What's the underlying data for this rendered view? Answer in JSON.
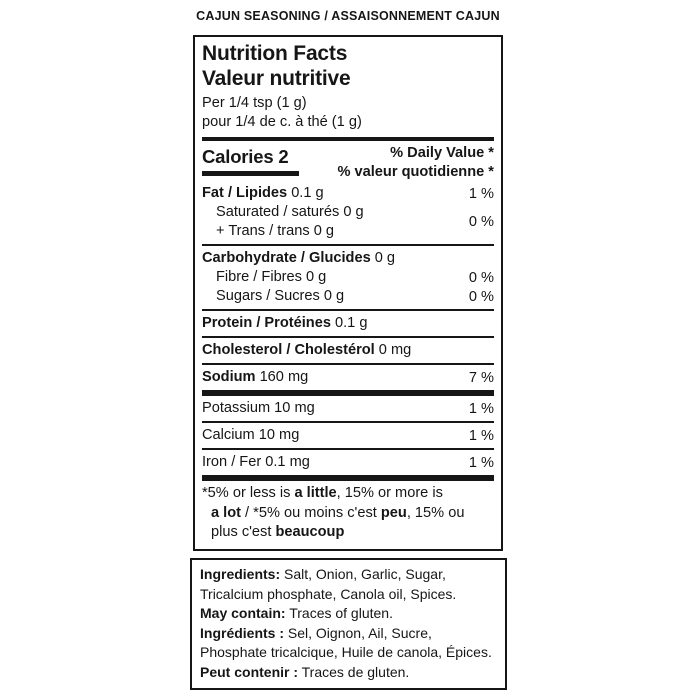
{
  "page": {
    "background_color": "#ffffff",
    "text_color": "#161616"
  },
  "header": {
    "product_title": "CAJUN SEASONING / ASSAISONNEMENT CAJUN"
  },
  "nutrition_facts": {
    "title_en": "Nutrition Facts",
    "title_fr": "Valeur nutritive",
    "serving_en": "Per 1/4 tsp (1 g)",
    "serving_fr": "pour 1/4 de c. à thé (1 g)",
    "calories": "Calories 2",
    "daily_value_header_en": "% Daily Value *",
    "daily_value_header_fr": "% valeur quotidienne *",
    "rows": [
      {
        "style": "main",
        "bold": "Fat / Lipides",
        "rest": "0.1 g",
        "dv": "1 %",
        "sep_after": "none"
      },
      {
        "style": "sub-group",
        "lines": [
          "Saturated / saturés 0 g",
          "+ Trans / trans 0 g"
        ],
        "dv": "0 %",
        "sep_after": "thin"
      },
      {
        "style": "main",
        "bold": "Carbohydrate / Glucides",
        "rest": "0 g",
        "dv": "",
        "sep_after": "none"
      },
      {
        "style": "sub",
        "lines": [
          "Fibre / Fibres 0 g"
        ],
        "dv": "0 %",
        "sep_after": "none"
      },
      {
        "style": "sub",
        "lines": [
          "Sugars / Sucres 0 g"
        ],
        "dv": "0 %",
        "sep_after": "thin"
      },
      {
        "style": "main",
        "bold": "Protein / Protéines",
        "rest": "0.1 g",
        "dv": "",
        "sep_after": "thin"
      },
      {
        "style": "main",
        "bold": "Cholesterol / Cholestérol",
        "rest": "0 mg",
        "dv": "",
        "sep_after": "thin"
      },
      {
        "style": "main",
        "bold": "Sodium",
        "rest": "160 mg",
        "dv": "7 %",
        "sep_after": "thick"
      },
      {
        "style": "plain",
        "lines": [
          "Potassium 10 mg"
        ],
        "dv": "1 %",
        "sep_after": "thin"
      },
      {
        "style": "plain",
        "lines": [
          "Calcium 10 mg"
        ],
        "dv": "1 %",
        "sep_after": "thin"
      },
      {
        "style": "plain",
        "lines": [
          "Iron / Fer 0.1 mg"
        ],
        "dv": "1 %",
        "sep_after": "thick"
      }
    ],
    "footnote_lines": [
      [
        {
          "t": "*5% or less is ",
          "b": false
        },
        {
          "t": "a little",
          "b": true
        },
        {
          "t": ", 15% or more is",
          "b": false
        }
      ],
      [
        {
          "t": "a lot",
          "b": true
        },
        {
          "t": " / *5% ou moins c'est ",
          "b": false
        },
        {
          "t": "peu",
          "b": true
        },
        {
          "t": ", 15% ou",
          "b": false
        }
      ],
      [
        {
          "t": "plus c'est ",
          "b": false
        },
        {
          "t": "beaucoup",
          "b": true
        }
      ]
    ]
  },
  "ingredients_box": {
    "entries": [
      {
        "label": "Ingredients:",
        "text": "Salt, Onion, Garlic, Sugar, Tricalcium phosphate, Canola oil, Spices."
      },
      {
        "label": "May contain:",
        "text": "Traces of gluten."
      },
      {
        "label": "Ingrédients :",
        "text": "Sel, Oignon, Ail, Sucre, Phosphate tricalcique, Huile de canola, Épices."
      },
      {
        "label": "Peut contenir :",
        "text": "Traces de gluten."
      }
    ]
  }
}
